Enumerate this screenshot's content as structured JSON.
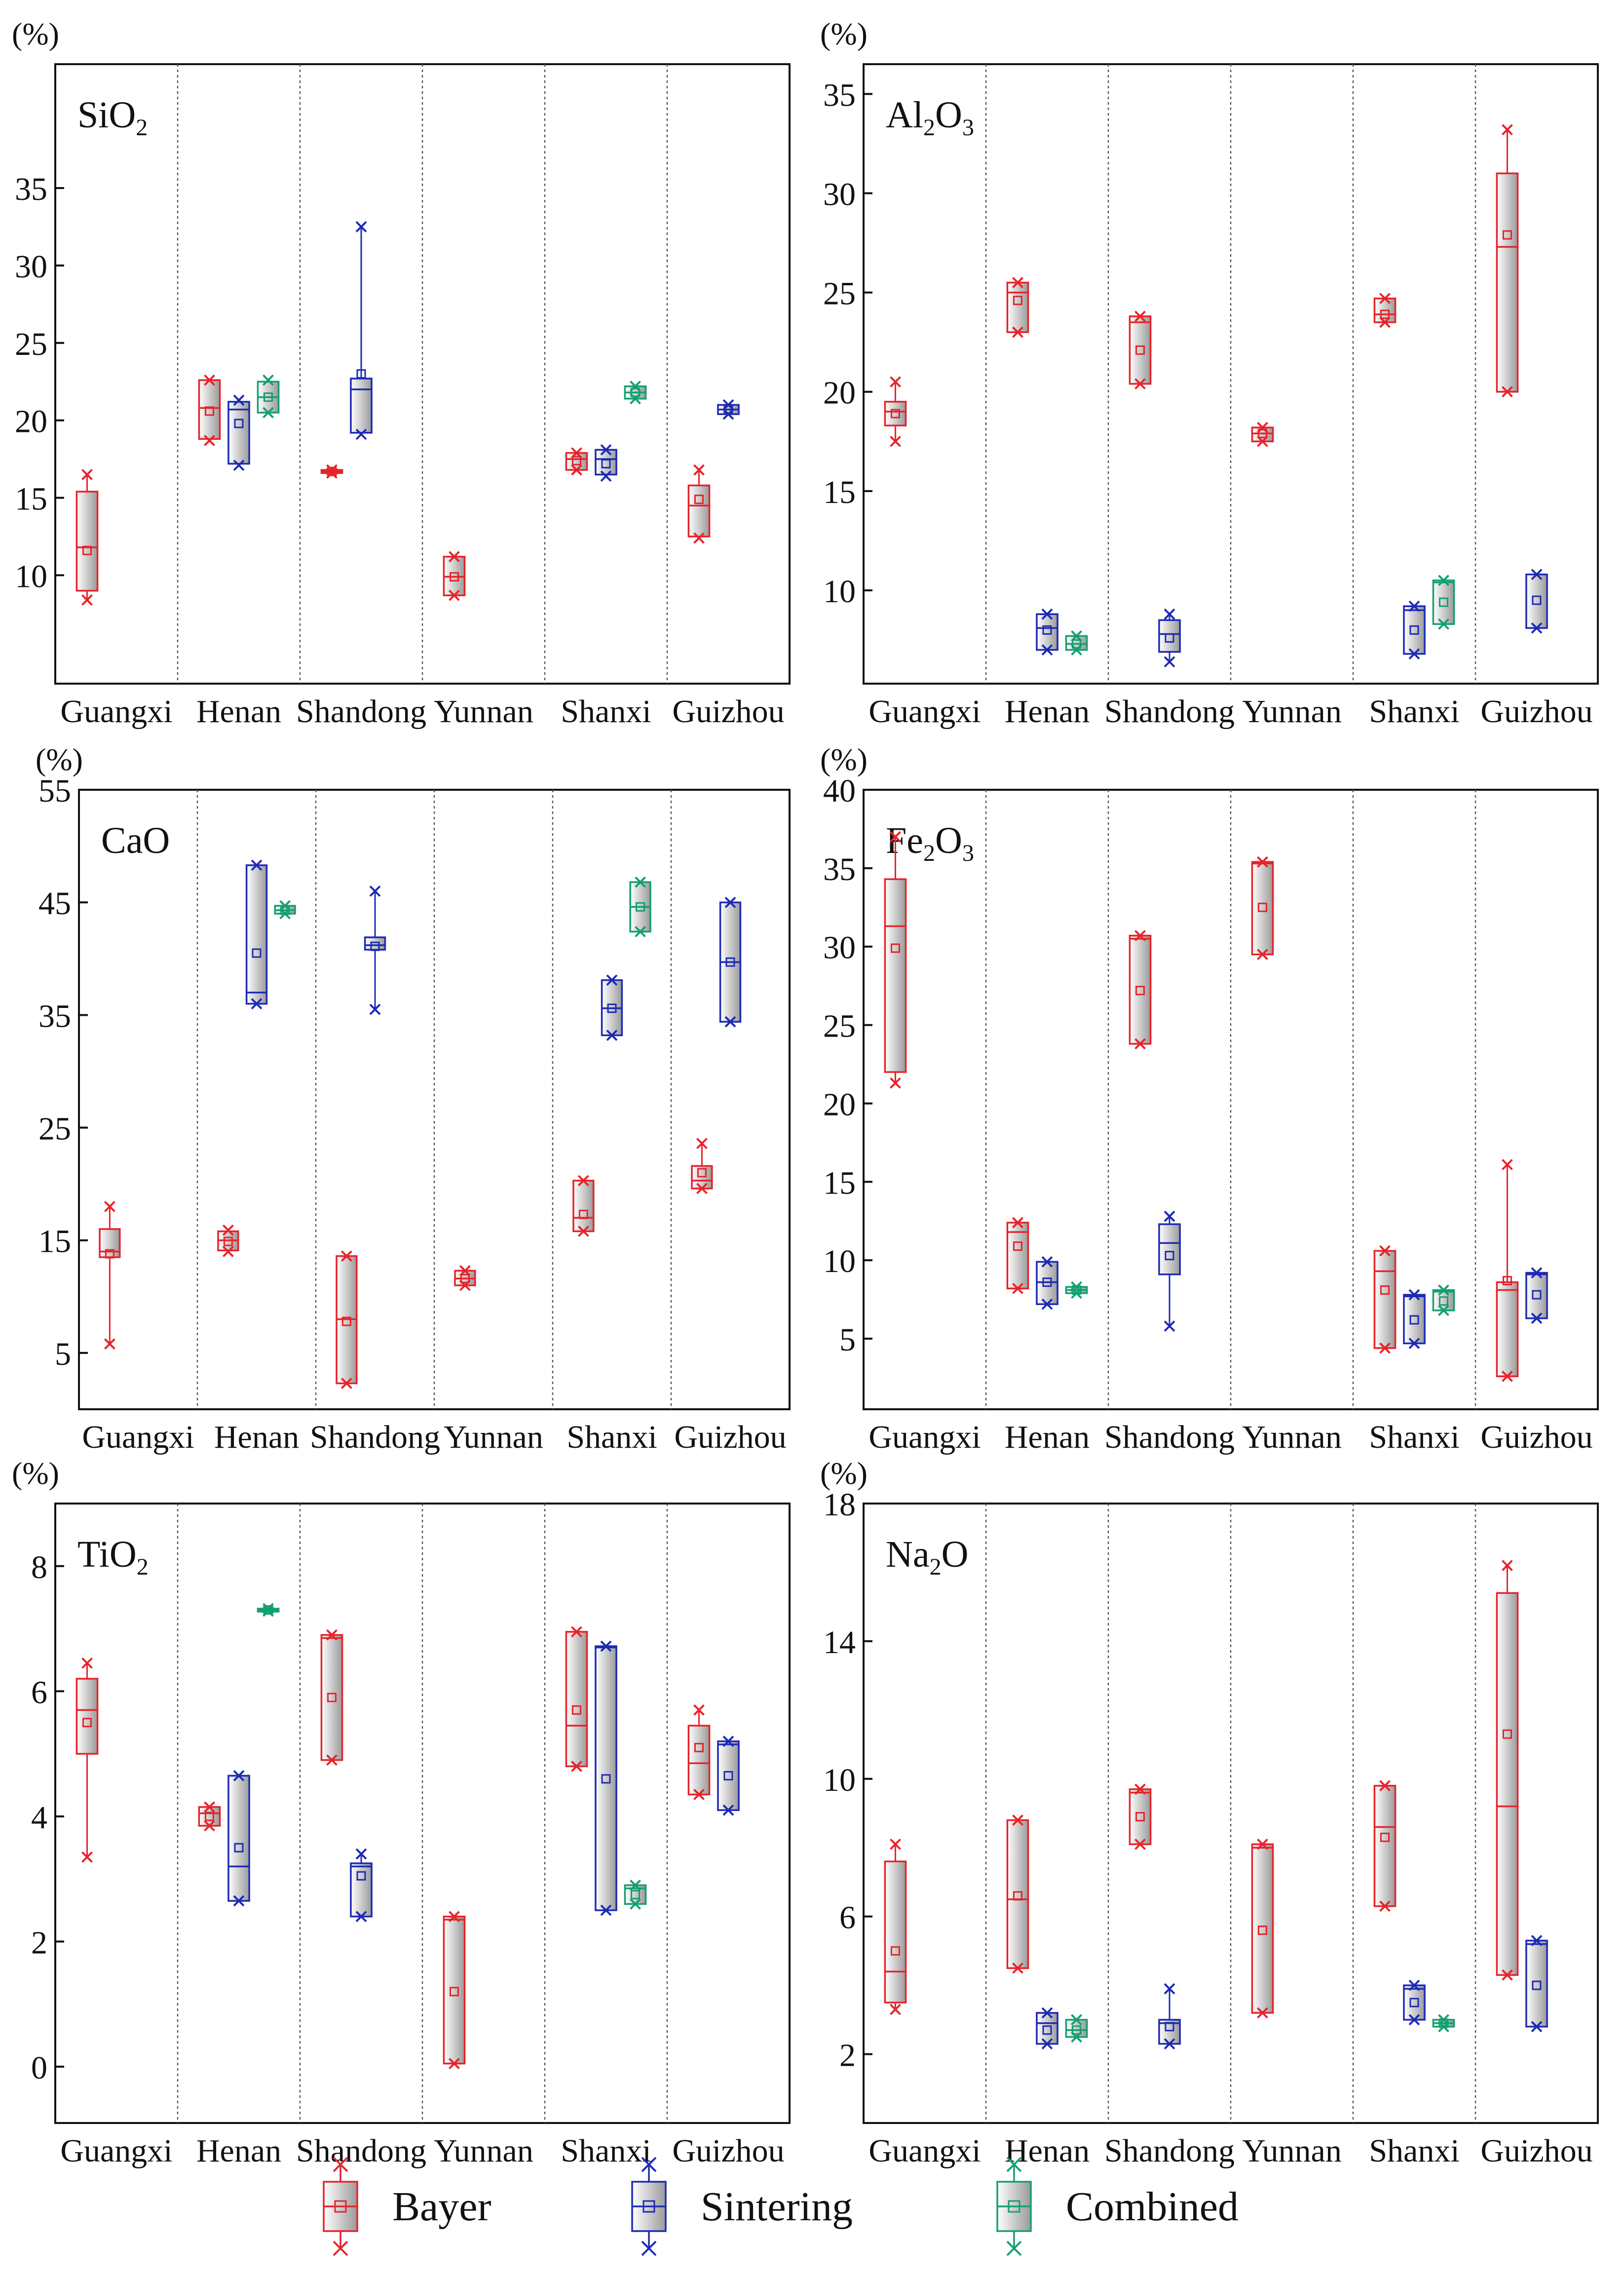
{
  "colors": {
    "Bayer": "#e8222a",
    "Sintering": "#1c2ab5",
    "Combined": "#12a06e",
    "frame": "#111111",
    "divider": "#555555"
  },
  "legend": [
    {
      "method": "Bayer",
      "label": "Bayer"
    },
    {
      "method": "Sintering",
      "label": "Sintering"
    },
    {
      "method": "Combined",
      "label": "Combined"
    }
  ],
  "chart_data": [
    {
      "type": "box",
      "title_main": "SiO",
      "title_sub": "2",
      "ylabel": "(%)",
      "ylim": [
        3,
        43
      ],
      "yticks": [
        10,
        15,
        20,
        25,
        30,
        35
      ],
      "categories": [
        "Guangxi",
        "Henan",
        "Shandong",
        "Yunnan",
        "Shanxi",
        "Guizhou"
      ],
      "boxes": [
        {
          "region": 0,
          "method": "Bayer",
          "q1": 9,
          "median": 11.8,
          "q3": 15.4,
          "mean": 11.6,
          "min": 8.4,
          "max": 16.5
        },
        {
          "region": 1,
          "method": "Bayer",
          "q1": 18.8,
          "median": 20.8,
          "q3": 22.6,
          "mean": 20.6,
          "min": 18.7,
          "max": 22.6
        },
        {
          "region": 1,
          "method": "Sintering",
          "q1": 17.2,
          "median": 20.7,
          "q3": 21.2,
          "mean": 19.8,
          "min": 17.1,
          "max": 21.3
        },
        {
          "region": 1,
          "method": "Combined",
          "q1": 20.5,
          "median": 21.5,
          "q3": 22.5,
          "mean": 21.5,
          "min": 20.5,
          "max": 22.6
        },
        {
          "region": 2,
          "method": "Bayer",
          "q1": 16.6,
          "median": 16.7,
          "q3": 16.8,
          "mean": 16.7,
          "min": 16.6,
          "max": 16.8
        },
        {
          "region": 2,
          "method": "Sintering",
          "q1": 19.2,
          "median": 22,
          "q3": 22.7,
          "mean": 23,
          "min": 19.1,
          "max": 32.5
        },
        {
          "region": 3,
          "method": "Bayer",
          "q1": 8.7,
          "median": 9.9,
          "q3": 11.2,
          "mean": 9.9,
          "min": 8.7,
          "max": 11.2
        },
        {
          "region": 4,
          "method": "Bayer",
          "q1": 16.8,
          "median": 17.5,
          "q3": 17.9,
          "mean": 17.4,
          "min": 16.8,
          "max": 17.9
        },
        {
          "region": 4,
          "method": "Sintering",
          "q1": 16.5,
          "median": 17.5,
          "q3": 18.1,
          "mean": 17.2,
          "min": 16.4,
          "max": 18.1
        },
        {
          "region": 4,
          "method": "Combined",
          "q1": 21.4,
          "median": 21.8,
          "q3": 22.2,
          "mean": 21.8,
          "min": 21.4,
          "max": 22.2
        },
        {
          "region": 5,
          "method": "Bayer",
          "q1": 12.5,
          "median": 14.5,
          "q3": 15.8,
          "mean": 14.9,
          "min": 12.4,
          "max": 16.8
        },
        {
          "region": 5,
          "method": "Sintering",
          "q1": 20.4,
          "median": 20.7,
          "q3": 21,
          "mean": 20.7,
          "min": 20.4,
          "max": 21
        }
      ]
    },
    {
      "type": "box",
      "title_main": "Al",
      "title_sub": "2",
      "title_main2": "O",
      "title_sub2": "3",
      "ylabel": "(%)",
      "ylim": [
        5.3,
        36.5
      ],
      "yticks": [
        10,
        15,
        20,
        25,
        30,
        35
      ],
      "categories": [
        "Guangxi",
        "Henan",
        "Shandong",
        "Yunnan",
        "Shanxi",
        "Guizhou"
      ],
      "boxes": [
        {
          "region": 0,
          "method": "Bayer",
          "q1": 18.3,
          "median": 19,
          "q3": 19.5,
          "mean": 18.9,
          "min": 17.5,
          "max": 20.5
        },
        {
          "region": 1,
          "method": "Bayer",
          "q1": 23,
          "median": 25,
          "q3": 25.5,
          "mean": 24.6,
          "min": 23,
          "max": 25.5
        },
        {
          "region": 1,
          "method": "Sintering",
          "q1": 7,
          "median": 8.1,
          "q3": 8.8,
          "mean": 8,
          "min": 7,
          "max": 8.8
        },
        {
          "region": 1,
          "method": "Combined",
          "q1": 7,
          "median": 7.3,
          "q3": 7.7,
          "mean": 7.3,
          "min": 7,
          "max": 7.7
        },
        {
          "region": 2,
          "method": "Bayer",
          "q1": 20.4,
          "median": 23.5,
          "q3": 23.8,
          "mean": 22.1,
          "min": 20.4,
          "max": 23.8
        },
        {
          "region": 2,
          "method": "Sintering",
          "q1": 6.9,
          "median": 7.8,
          "q3": 8.5,
          "mean": 7.6,
          "min": 6.4,
          "max": 8.8
        },
        {
          "region": 3,
          "method": "Bayer",
          "q1": 17.5,
          "median": 17.9,
          "q3": 18.2,
          "mean": 17.9,
          "min": 17.5,
          "max": 18.2
        },
        {
          "region": 4,
          "method": "Bayer",
          "q1": 23.5,
          "median": 23.9,
          "q3": 24.7,
          "mean": 23.9,
          "min": 23.5,
          "max": 24.7
        },
        {
          "region": 4,
          "method": "Sintering",
          "q1": 6.8,
          "median": 9,
          "q3": 9.2,
          "mean": 8,
          "min": 6.8,
          "max": 9.2
        },
        {
          "region": 4,
          "method": "Combined",
          "q1": 8.3,
          "median": 10.4,
          "q3": 10.5,
          "mean": 9.4,
          "min": 8.3,
          "max": 10.5
        },
        {
          "region": 5,
          "method": "Bayer",
          "q1": 20,
          "median": 27.3,
          "q3": 31,
          "mean": 27.9,
          "min": 20,
          "max": 33.2
        },
        {
          "region": 5,
          "method": "Sintering",
          "q1": 8.1,
          "median": 10.8,
          "q3": 10.8,
          "mean": 9.5,
          "min": 8.1,
          "max": 10.8
        }
      ]
    },
    {
      "type": "box",
      "title_main": "CaO",
      "title_sub": "",
      "ylabel": "(%)",
      "ylim": [
        0,
        55
      ],
      "yticks": [
        5,
        15,
        25,
        35,
        45,
        55
      ],
      "categories": [
        "Guangxi",
        "Henan",
        "Shandong",
        "Yunnan",
        "Shanxi",
        "Guizhou"
      ],
      "boxes": [
        {
          "region": 0,
          "method": "Bayer",
          "q1": 13.5,
          "median": 14,
          "q3": 16,
          "mean": 13.8,
          "min": 5.8,
          "max": 18
        },
        {
          "region": 1,
          "method": "Bayer",
          "q1": 14.1,
          "median": 15,
          "q3": 15.8,
          "mean": 14.9,
          "min": 14,
          "max": 15.9
        },
        {
          "region": 1,
          "method": "Sintering",
          "q1": 36,
          "median": 37,
          "q3": 48.3,
          "mean": 40.5,
          "min": 36,
          "max": 48.3
        },
        {
          "region": 1,
          "method": "Combined",
          "q1": 44,
          "median": 44.3,
          "q3": 44.7,
          "mean": 44.3,
          "min": 44,
          "max": 44.7
        },
        {
          "region": 2,
          "method": "Bayer",
          "q1": 2.3,
          "median": 8,
          "q3": 13.6,
          "mean": 7.8,
          "min": 2.3,
          "max": 13.6
        },
        {
          "region": 2,
          "method": "Sintering",
          "q1": 40.8,
          "median": 41.2,
          "q3": 41.9,
          "mean": 41.1,
          "min": 35.5,
          "max": 46
        },
        {
          "region": 3,
          "method": "Bayer",
          "q1": 11,
          "median": 11.6,
          "q3": 12.3,
          "mean": 11.6,
          "min": 11,
          "max": 12.3
        },
        {
          "region": 4,
          "method": "Bayer",
          "q1": 15.8,
          "median": 17,
          "q3": 20.3,
          "mean": 17.3,
          "min": 15.8,
          "max": 20.3
        },
        {
          "region": 4,
          "method": "Sintering",
          "q1": 33.2,
          "median": 35.6,
          "q3": 38.1,
          "mean": 35.6,
          "min": 33.2,
          "max": 38.1
        },
        {
          "region": 4,
          "method": "Combined",
          "q1": 42.4,
          "median": 44.6,
          "q3": 46.8,
          "mean": 44.6,
          "min": 42.4,
          "max": 46.8
        },
        {
          "region": 5,
          "method": "Bayer",
          "q1": 19.6,
          "median": 20.3,
          "q3": 21.6,
          "mean": 21,
          "min": 19.6,
          "max": 23.6
        },
        {
          "region": 5,
          "method": "Sintering",
          "q1": 34.4,
          "median": 39.7,
          "q3": 45,
          "mean": 39.7,
          "min": 34.4,
          "max": 45
        }
      ]
    },
    {
      "type": "box",
      "title_main": "Fe",
      "title_sub": "2",
      "title_main2": "O",
      "title_sub2": "3",
      "ylabel": "(%)",
      "ylim": [
        0.5,
        40
      ],
      "yticks": [
        5,
        10,
        15,
        20,
        25,
        30,
        35,
        40
      ],
      "categories": [
        "Guangxi",
        "Henan",
        "Shandong",
        "Yunnan",
        "Shanxi",
        "Guizhou"
      ],
      "boxes": [
        {
          "region": 0,
          "method": "Bayer",
          "q1": 22,
          "median": 31.3,
          "q3": 34.3,
          "mean": 29.9,
          "min": 21.3,
          "max": 37
        },
        {
          "region": 1,
          "method": "Bayer",
          "q1": 8.2,
          "median": 11.8,
          "q3": 12.4,
          "mean": 10.9,
          "min": 8.2,
          "max": 12.4
        },
        {
          "region": 1,
          "method": "Sintering",
          "q1": 7.2,
          "median": 8.6,
          "q3": 9.9,
          "mean": 8.6,
          "min": 7.2,
          "max": 9.9
        },
        {
          "region": 1,
          "method": "Combined",
          "q1": 7.9,
          "median": 8.1,
          "q3": 8.3,
          "mean": 8.1,
          "min": 7.9,
          "max": 8.3
        },
        {
          "region": 2,
          "method": "Bayer",
          "q1": 23.8,
          "median": 30.5,
          "q3": 30.7,
          "mean": 27.2,
          "min": 23.8,
          "max": 30.7
        },
        {
          "region": 2,
          "method": "Sintering",
          "q1": 9.1,
          "median": 11.1,
          "q3": 12.3,
          "mean": 10.3,
          "min": 5.8,
          "max": 12.8
        },
        {
          "region": 3,
          "method": "Bayer",
          "q1": 29.5,
          "median": 35.3,
          "q3": 35.4,
          "mean": 32.5,
          "min": 29.5,
          "max": 35.4
        },
        {
          "region": 4,
          "method": "Bayer",
          "q1": 4.4,
          "median": 9.3,
          "q3": 10.6,
          "mean": 8.1,
          "min": 4.4,
          "max": 10.6
        },
        {
          "region": 4,
          "method": "Sintering",
          "q1": 4.7,
          "median": 7.7,
          "q3": 7.8,
          "mean": 6.2,
          "min": 4.7,
          "max": 7.8
        },
        {
          "region": 4,
          "method": "Combined",
          "q1": 6.8,
          "median": 8,
          "q3": 8.1,
          "mean": 7.4,
          "min": 6.8,
          "max": 8.1
        },
        {
          "region": 5,
          "method": "Bayer",
          "q1": 2.6,
          "median": 8.1,
          "q3": 8.6,
          "mean": 8.7,
          "min": 2.6,
          "max": 16.1
        },
        {
          "region": 5,
          "method": "Sintering",
          "q1": 6.3,
          "median": 9.1,
          "q3": 9.2,
          "mean": 7.8,
          "min": 6.3,
          "max": 9.2
        }
      ]
    },
    {
      "type": "box",
      "title_main": "TiO",
      "title_sub": "2",
      "ylabel": "(%)",
      "ylim": [
        -0.9,
        9
      ],
      "yticks": [
        0,
        2,
        4,
        6,
        8
      ],
      "categories": [
        "Guangxi",
        "Henan",
        "Shandong",
        "Yunnan",
        "Shanxi",
        "Guizhou"
      ],
      "boxes": [
        {
          "region": 0,
          "method": "Bayer",
          "q1": 5,
          "median": 5.7,
          "q3": 6.2,
          "mean": 5.5,
          "min": 3.35,
          "max": 6.45
        },
        {
          "region": 1,
          "method": "Bayer",
          "q1": 3.85,
          "median": 4.05,
          "q3": 4.15,
          "mean": 4,
          "min": 3.85,
          "max": 4.15
        },
        {
          "region": 1,
          "method": "Sintering",
          "q1": 2.65,
          "median": 3.2,
          "q3": 4.65,
          "mean": 3.5,
          "min": 2.65,
          "max": 4.65
        },
        {
          "region": 1,
          "method": "Combined",
          "q1": 7.28,
          "median": 7.3,
          "q3": 7.32,
          "mean": 7.3,
          "min": 7.28,
          "max": 7.32
        },
        {
          "region": 2,
          "method": "Bayer",
          "q1": 4.9,
          "median": 6.85,
          "q3": 6.9,
          "mean": 5.9,
          "min": 4.9,
          "max": 6.9
        },
        {
          "region": 2,
          "method": "Sintering",
          "q1": 2.4,
          "median": 3.2,
          "q3": 3.25,
          "mean": 3.05,
          "min": 2.4,
          "max": 3.4
        },
        {
          "region": 3,
          "method": "Bayer",
          "q1": 0.05,
          "median": 2.35,
          "q3": 2.4,
          "mean": 1.2,
          "min": 0.05,
          "max": 2.4
        },
        {
          "region": 4,
          "method": "Bayer",
          "q1": 4.8,
          "median": 5.45,
          "q3": 6.95,
          "mean": 5.7,
          "min": 4.8,
          "max": 6.95
        },
        {
          "region": 4,
          "method": "Sintering",
          "q1": 2.5,
          "median": 6.7,
          "q3": 6.72,
          "mean": 4.6,
          "min": 2.5,
          "max": 6.72
        },
        {
          "region": 4,
          "method": "Combined",
          "q1": 2.6,
          "median": 2.85,
          "q3": 2.9,
          "mean": 2.75,
          "min": 2.6,
          "max": 2.9
        },
        {
          "region": 5,
          "method": "Bayer",
          "q1": 4.35,
          "median": 4.85,
          "q3": 5.45,
          "mean": 5.1,
          "min": 4.35,
          "max": 5.7
        },
        {
          "region": 5,
          "method": "Sintering",
          "q1": 4.1,
          "median": 5.15,
          "q3": 5.2,
          "mean": 4.65,
          "min": 4.1,
          "max": 5.2
        }
      ]
    },
    {
      "type": "box",
      "title_main": "Na",
      "title_sub": "2",
      "title_main2": "O",
      "title_sub2": "",
      "ylabel": "(%)",
      "ylim": [
        0,
        18
      ],
      "yticks": [
        2,
        6,
        10,
        14,
        18
      ],
      "categories": [
        "Guangxi",
        "Henan",
        "Shandong",
        "Yunnan",
        "Shanxi",
        "Guizhou"
      ],
      "boxes": [
        {
          "region": 0,
          "method": "Bayer",
          "q1": 3.5,
          "median": 4.4,
          "q3": 7.6,
          "mean": 5,
          "min": 3.3,
          "max": 8.1
        },
        {
          "region": 1,
          "method": "Bayer",
          "q1": 4.5,
          "median": 6.5,
          "q3": 8.8,
          "mean": 6.6,
          "min": 4.5,
          "max": 8.8
        },
        {
          "region": 1,
          "method": "Sintering",
          "q1": 2.3,
          "median": 2.9,
          "q3": 3.2,
          "mean": 2.7,
          "min": 2.3,
          "max": 3.2
        },
        {
          "region": 1,
          "method": "Combined",
          "q1": 2.5,
          "median": 2.7,
          "q3": 3,
          "mean": 2.7,
          "min": 2.5,
          "max": 3
        },
        {
          "region": 2,
          "method": "Bayer",
          "q1": 8.1,
          "median": 9.6,
          "q3": 9.7,
          "mean": 8.9,
          "min": 8.1,
          "max": 9.7
        },
        {
          "region": 2,
          "method": "Sintering",
          "q1": 2.3,
          "median": 2.9,
          "q3": 3,
          "mean": 2.8,
          "min": 2.3,
          "max": 3.9
        },
        {
          "region": 3,
          "method": "Bayer",
          "q1": 3.2,
          "median": 8,
          "q3": 8.1,
          "mean": 5.6,
          "min": 3.2,
          "max": 8.1
        },
        {
          "region": 4,
          "method": "Bayer",
          "q1": 6.3,
          "median": 8.6,
          "q3": 9.8,
          "mean": 8.3,
          "min": 6.3,
          "max": 9.8
        },
        {
          "region": 4,
          "method": "Sintering",
          "q1": 3,
          "median": 3.9,
          "q3": 4,
          "mean": 3.5,
          "min": 3,
          "max": 4
        },
        {
          "region": 4,
          "method": "Combined",
          "q1": 2.8,
          "median": 2.9,
          "q3": 3,
          "mean": 2.9,
          "min": 2.8,
          "max": 3
        },
        {
          "region": 5,
          "method": "Bayer",
          "q1": 4.3,
          "median": 9.2,
          "q3": 15.4,
          "mean": 11.3,
          "min": 4.3,
          "max": 16.2
        },
        {
          "region": 5,
          "method": "Sintering",
          "q1": 2.8,
          "median": 5.2,
          "q3": 5.3,
          "mean": 4,
          "min": 2.8,
          "max": 5.3
        }
      ]
    }
  ]
}
